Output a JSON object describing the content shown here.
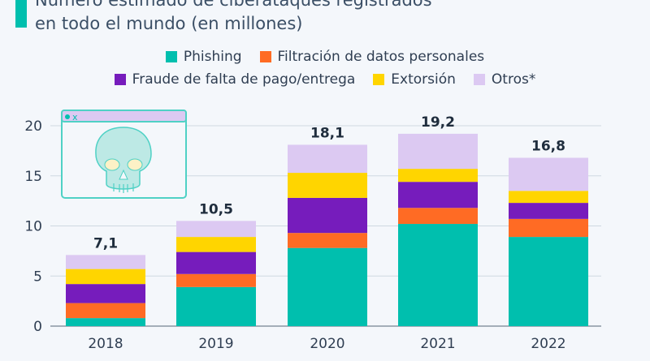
{
  "title": {
    "line1": "Número estimado de ciberataques registrados",
    "line2": "en todo el mundo (en millones)"
  },
  "chart_data": {
    "type": "bar",
    "stacked": true,
    "categories": [
      "2018",
      "2019",
      "2020",
      "2021",
      "2022"
    ],
    "series": [
      {
        "name": "Phishing",
        "color": "#00bfae",
        "values": [
          0.8,
          3.9,
          7.8,
          10.2,
          8.9
        ]
      },
      {
        "name": "Filtración de datos personales",
        "color": "#ff6b24",
        "values": [
          1.5,
          1.3,
          1.5,
          1.6,
          1.8
        ]
      },
      {
        "name": "Fraude de falta de pago/entrega",
        "color": "#761cbc",
        "values": [
          1.9,
          2.2,
          3.5,
          2.6,
          1.6
        ]
      },
      {
        "name": "Extorsión",
        "color": "#ffd500",
        "values": [
          1.5,
          1.5,
          2.5,
          1.3,
          1.2
        ]
      },
      {
        "name": "Otros*",
        "color": "#dcc9f2",
        "values": [
          1.4,
          1.6,
          2.8,
          3.5,
          3.3
        ]
      }
    ],
    "totals": [
      "7,1",
      "10,5",
      "18,1",
      "19,2",
      "16,8"
    ],
    "yticks": [
      "0",
      "5",
      "10",
      "15",
      "20"
    ],
    "ylim": [
      0,
      20
    ],
    "grid": true,
    "legend_position": "top"
  },
  "illustration": {
    "icon": "skull-browser-window-icon",
    "window_label": "x"
  }
}
